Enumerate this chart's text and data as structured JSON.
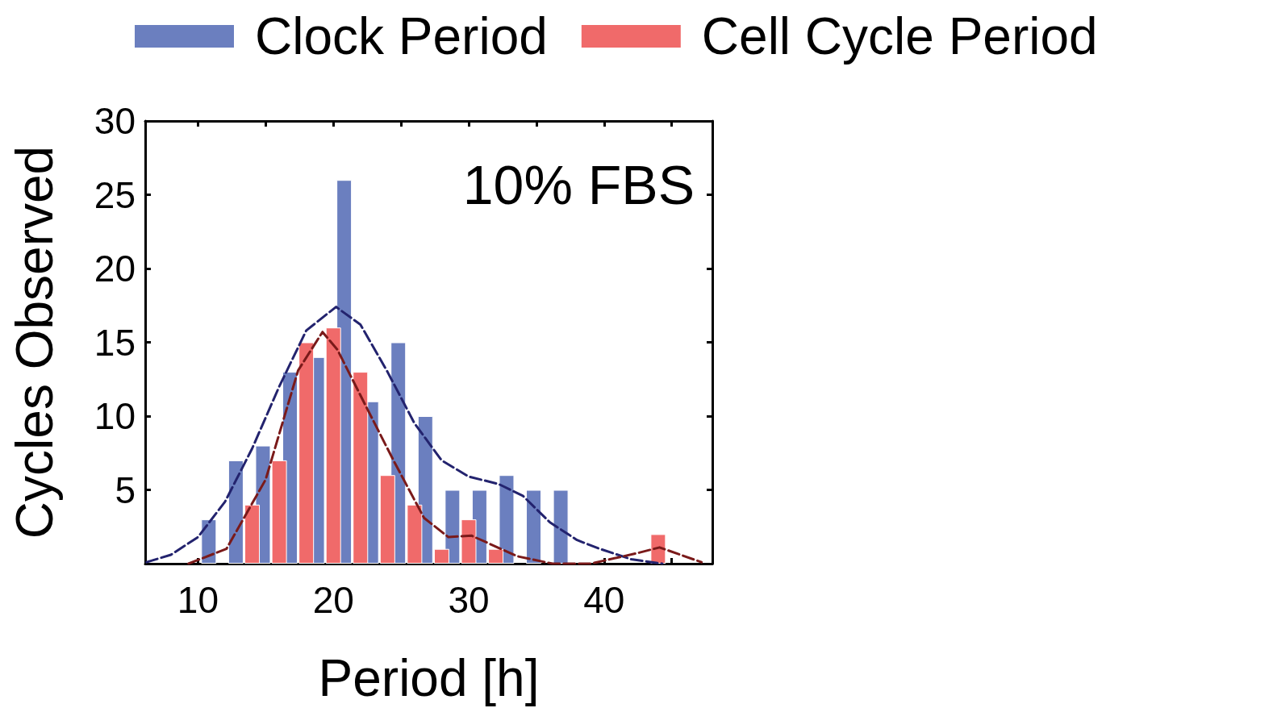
{
  "chart_data": {
    "type": "bar",
    "xlabel": "Period [h]",
    "ylabel": "Cycles Observed",
    "annotations": [
      "10% FBS"
    ],
    "xlim": [
      6.1,
      48
    ],
    "xticks": [
      10,
      {
        "value": 15,
        "label": null
      },
      20,
      {
        "value": 25,
        "label": null
      },
      30,
      {
        "value": 35,
        "label": null
      },
      40,
      {
        "value": 45,
        "label": null
      }
    ],
    "ylim": [
      0,
      30
    ],
    "yticks": [
      5,
      10,
      15,
      20,
      25,
      30
    ],
    "grid": false,
    "legend": "top",
    "series": [
      {
        "name": "Clock Period",
        "color": "#6b7fbf",
        "x": [
          10.8,
          12.8,
          14.8,
          16.8,
          18.8,
          20.8,
          22.8,
          24.8,
          26.8,
          28.8,
          30.8,
          32.8,
          34.8,
          36.8
        ],
        "values": [
          3,
          7,
          8,
          13,
          14,
          26,
          11,
          15,
          10,
          5,
          5,
          6,
          5,
          5
        ]
      },
      {
        "name": "Cell Cycle Period",
        "color": "#f06a6a",
        "x": [
          14,
          16,
          18,
          20,
          22,
          24,
          26,
          28,
          30,
          32,
          44
        ],
        "values": [
          4,
          7,
          15,
          16,
          13,
          6,
          4,
          1,
          3,
          1,
          2
        ]
      },
      {
        "type": "line",
        "line_style": "dashed",
        "marker": "none",
        "color": "#23236e",
        "x": [
          6.2,
          8,
          10,
          12,
          14,
          16,
          18,
          20.2,
          22,
          24,
          26,
          28,
          30,
          32.2,
          34,
          36,
          38,
          39.7,
          42,
          44.3
        ],
        "values": [
          0.1,
          0.6,
          1.8,
          4.2,
          7.8,
          12,
          15.8,
          17.4,
          16.2,
          13,
          9.5,
          7,
          5.9,
          5.4,
          4.6,
          2.8,
          1.6,
          1,
          0.3,
          0
        ]
      },
      {
        "type": "line",
        "line_style": "dashed",
        "marker": "none",
        "color": "#7a1a1a",
        "x": [
          9.3,
          12.1,
          15,
          17.4,
          19.2,
          20.3,
          22.5,
          24.5,
          26.7,
          28.5,
          30.2,
          33.6,
          36.2,
          39,
          42.4,
          44.1,
          47.2
        ],
        "values": [
          0,
          1,
          5.7,
          13.1,
          15.7,
          14.5,
          10.5,
          6.9,
          3.1,
          1.8,
          1.9,
          0.5,
          0,
          0,
          0.7,
          1.1,
          0.1
        ]
      }
    ]
  }
}
